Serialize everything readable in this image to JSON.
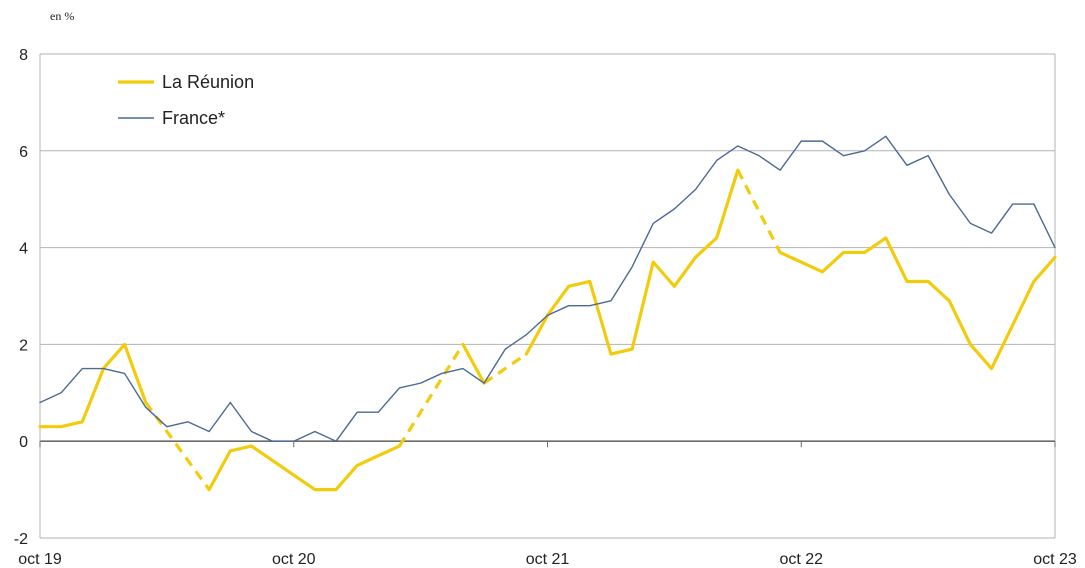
{
  "chart_data": {
    "type": "line",
    "ylabel": "en %",
    "ylim": [
      -2,
      8
    ],
    "yticks": [
      -2,
      0,
      2,
      4,
      6,
      8
    ],
    "xtick_labels": [
      "oct 19",
      "oct 20",
      "oct 21",
      "oct 22",
      "oct 23"
    ],
    "xtick_positions": [
      0,
      12,
      24,
      36,
      48
    ],
    "x_count": 49,
    "grid": true,
    "legend": "top-left",
    "series": [
      {
        "name": "La Réunion",
        "color": "#f2cc0c",
        "values": [
          0.3,
          0.3,
          0.4,
          1.5,
          2.0,
          0.8,
          null,
          null,
          -1.0,
          -0.2,
          -0.1,
          -0.4,
          -0.7,
          -1.0,
          -1.0,
          -0.5,
          -0.3,
          -0.1,
          null,
          null,
          2.0,
          1.2,
          null,
          1.8,
          2.6,
          3.2,
          3.3,
          1.8,
          1.9,
          3.7,
          3.2,
          3.8,
          4.2,
          5.6,
          null,
          3.9,
          3.7,
          3.5,
          3.9,
          3.9,
          4.2,
          3.3,
          3.3,
          2.9,
          2.0,
          1.5,
          2.4,
          3.3,
          3.8
        ],
        "dashed_gaps": [
          [
            5,
            8
          ],
          [
            17,
            20
          ],
          [
            21,
            23
          ],
          [
            33,
            35
          ]
        ]
      },
      {
        "name": "France*",
        "color": "#4a6a94",
        "values": [
          0.8,
          1.0,
          1.5,
          1.5,
          1.4,
          0.7,
          0.3,
          0.4,
          0.2,
          0.8,
          0.2,
          0.0,
          0.0,
          0.2,
          0.0,
          0.6,
          0.6,
          1.1,
          1.2,
          1.4,
          1.5,
          1.2,
          1.9,
          2.2,
          2.6,
          2.8,
          2.8,
          2.9,
          3.6,
          4.5,
          4.8,
          5.2,
          5.8,
          6.1,
          5.9,
          5.6,
          6.2,
          6.2,
          5.9,
          6.0,
          6.3,
          5.7,
          5.9,
          5.1,
          4.5,
          4.3,
          4.9,
          4.9,
          4.0
        ]
      }
    ]
  }
}
